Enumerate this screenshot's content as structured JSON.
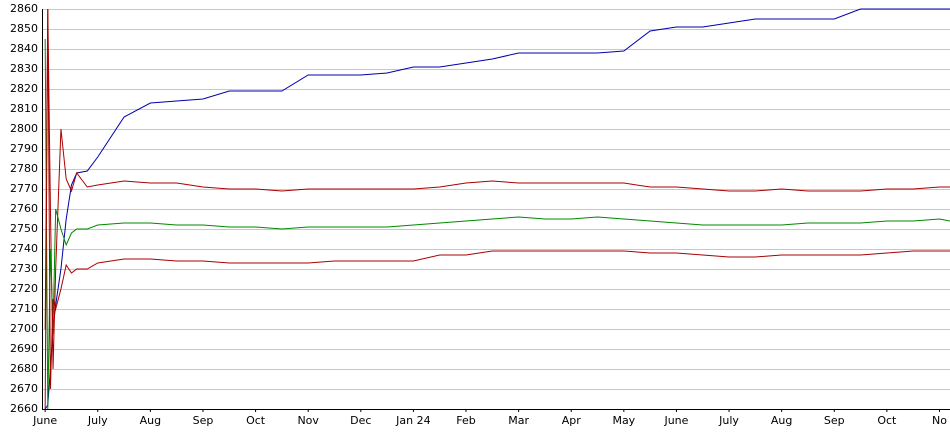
{
  "chart_data": {
    "type": "line",
    "x": [
      0,
      0.05,
      0.1,
      0.15,
      0.2,
      0.3,
      0.4,
      0.5,
      0.6,
      0.8,
      1,
      1.5,
      2,
      2.5,
      3,
      3.5,
      4,
      4.5,
      5,
      5.5,
      6,
      6.5,
      7,
      7.5,
      8,
      8.5,
      9,
      9.5,
      10,
      10.5,
      11,
      11.5,
      12,
      12.5,
      13,
      13.5,
      14,
      14.5,
      15,
      15.5,
      16,
      16.5,
      17,
      17.2
    ],
    "series": [
      {
        "color": "#0000aa",
        "values": [
          2660,
          2662,
          2680,
          2700,
          2712,
          2730,
          2755,
          2772,
          2778,
          2779,
          2786,
          2806,
          2813,
          2814,
          2815,
          2819,
          2819,
          2819,
          2827,
          2827,
          2827,
          2828,
          2831,
          2831,
          2833,
          2835,
          2838,
          2838,
          2838,
          2838,
          2839,
          2849,
          2851,
          2851,
          2853,
          2855,
          2855,
          2855,
          2855,
          2860,
          2860,
          2860,
          2860,
          2860
        ]
      },
      {
        "color": "#aa0000",
        "values": [
          2700,
          2860,
          2760,
          2680,
          2730,
          2800,
          2775,
          2769,
          2778,
          2771,
          2772,
          2774,
          2773,
          2773,
          2771,
          2770,
          2770,
          2769,
          2770,
          2770,
          2770,
          2770,
          2770,
          2771,
          2773,
          2774,
          2773,
          2773,
          2773,
          2773,
          2773,
          2771,
          2771,
          2770,
          2769,
          2769,
          2770,
          2769,
          2769,
          2769,
          2770,
          2770,
          2771,
          2771
        ]
      },
      {
        "color": "#008800",
        "values": [
          2845,
          2660,
          2740,
          2700,
          2760,
          2750,
          2742,
          2748,
          2750,
          2750,
          2752,
          2753,
          2753,
          2752,
          2752,
          2751,
          2751,
          2750,
          2751,
          2751,
          2751,
          2751,
          2752,
          2753,
          2754,
          2755,
          2756,
          2755,
          2755,
          2756,
          2755,
          2754,
          2753,
          2752,
          2752,
          2752,
          2752,
          2753,
          2753,
          2753,
          2754,
          2754,
          2755,
          2754
        ]
      },
      {
        "color": "#aa0000",
        "values": [
          2660,
          2860,
          2670,
          2715,
          2710,
          2720,
          2732,
          2728,
          2730,
          2730,
          2733,
          2735,
          2735,
          2734,
          2734,
          2733,
          2733,
          2733,
          2733,
          2734,
          2734,
          2734,
          2734,
          2737,
          2737,
          2739,
          2739,
          2739,
          2739,
          2739,
          2739,
          2738,
          2738,
          2737,
          2736,
          2736,
          2737,
          2737,
          2737,
          2737,
          2738,
          2739,
          2739,
          2739
        ]
      }
    ],
    "xlim": [
      -0.06,
      17.2
    ],
    "xticks": [
      {
        "value": 0,
        "label": "June"
      },
      {
        "value": 1,
        "label": "July"
      },
      {
        "value": 2,
        "label": "Aug"
      },
      {
        "value": 3,
        "label": "Sep"
      },
      {
        "value": 4,
        "label": "Oct"
      },
      {
        "value": 5,
        "label": "Nov"
      },
      {
        "value": 6,
        "label": "Dec"
      },
      {
        "value": 7,
        "label": "Jan 24"
      },
      {
        "value": 8,
        "label": "Feb"
      },
      {
        "value": 9,
        "label": "Mar"
      },
      {
        "value": 10,
        "label": "Apr"
      },
      {
        "value": 11,
        "label": "May"
      },
      {
        "value": 12,
        "label": "June"
      },
      {
        "value": 13,
        "label": "July"
      },
      {
        "value": 14,
        "label": "Aug"
      },
      {
        "value": 15,
        "label": "Sep"
      },
      {
        "value": 16,
        "label": "Oct"
      },
      {
        "value": 17,
        "label": "No"
      }
    ],
    "ylim": [
      2660,
      2860
    ],
    "yticks": [
      2660,
      2670,
      2680,
      2690,
      2700,
      2710,
      2720,
      2730,
      2740,
      2750,
      2760,
      2770,
      2780,
      2790,
      2800,
      2810,
      2820,
      2830,
      2840,
      2850,
      2860
    ],
    "grid": true
  }
}
